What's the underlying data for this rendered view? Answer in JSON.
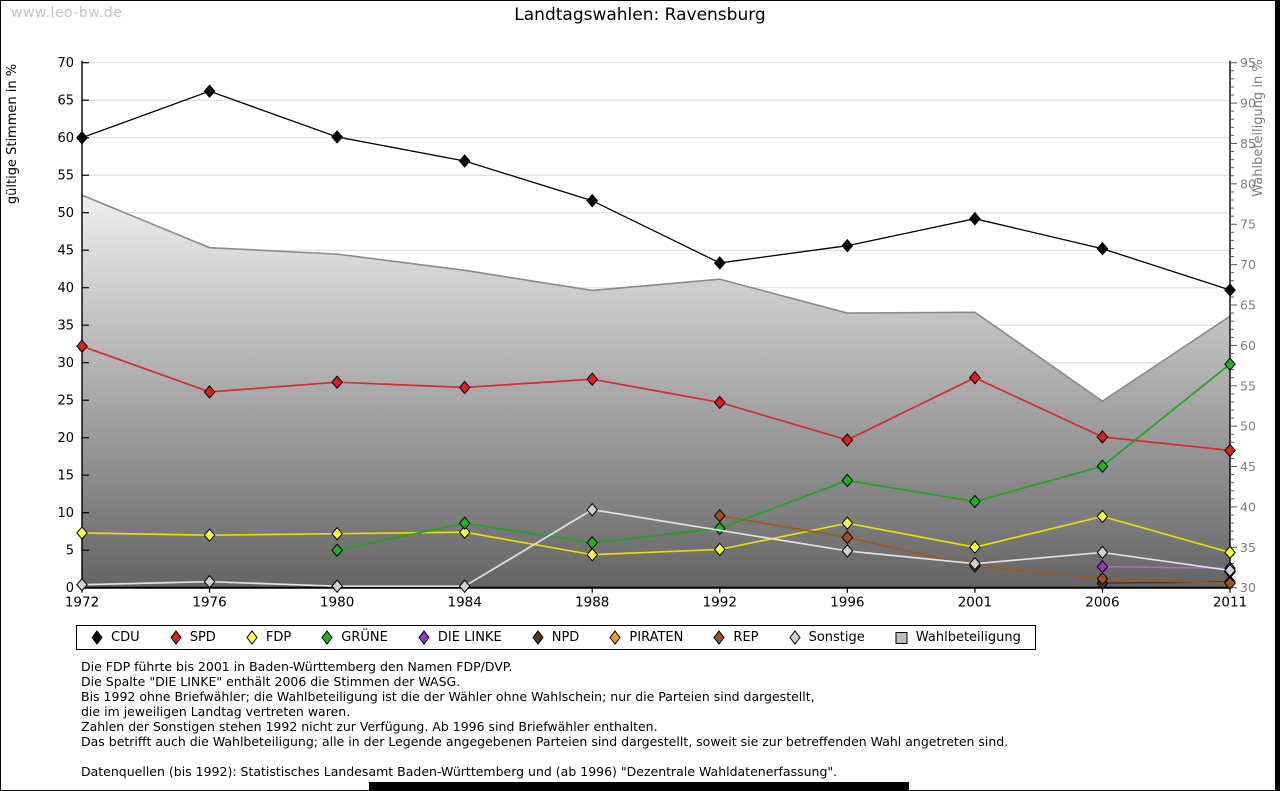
{
  "watermark": "www.leo-bw.de",
  "title": "Landtagswahlen: Ravensburg",
  "chart_data": {
    "type": "line",
    "title": "Landtagswahlen: Ravensburg",
    "x_categories": [
      "1972",
      "1976",
      "1980",
      "1984",
      "1988",
      "1992",
      "1996",
      "2001",
      "2006",
      "2011"
    ],
    "ylabel_left": "gültige Stimmen in %",
    "ylabel_right": "Wahlbeteiligung in %",
    "ylim_left": [
      0,
      70
    ],
    "ylim_right": [
      30,
      95
    ],
    "ytick_step_left": 5,
    "ytick_step_right": 5,
    "grid": true,
    "legend_position": "bottom",
    "series": [
      {
        "name": "Wahlbeteiligung",
        "type": "area",
        "axis": "right",
        "color": "#8a8a8a",
        "marker_color": "#bbbbbb",
        "values": [
          78.6,
          72.1,
          71.3,
          69.3,
          66.8,
          68.2,
          64.0,
          64.1,
          53.1,
          63.6
        ]
      },
      {
        "name": "CDU",
        "type": "line",
        "axis": "left",
        "color": "#000000",
        "marker_color": "#000000",
        "values": [
          60.0,
          66.2,
          60.1,
          56.9,
          51.6,
          43.3,
          45.6,
          49.2,
          45.2,
          39.7
        ]
      },
      {
        "name": "SPD",
        "type": "line",
        "axis": "left",
        "color": "#d42a2a",
        "marker_color": "#dd1f1f",
        "values": [
          32.2,
          26.1,
          27.4,
          26.7,
          27.8,
          24.7,
          19.7,
          28.0,
          20.1,
          18.3
        ]
      },
      {
        "name": "FDP",
        "type": "line",
        "axis": "left",
        "color": "#ecdc08",
        "marker_color": "#ffff38",
        "values": [
          7.3,
          7.0,
          7.2,
          7.4,
          4.4,
          5.1,
          8.6,
          5.4,
          9.5,
          4.7
        ]
      },
      {
        "name": "GRÜNE",
        "type": "line",
        "axis": "left",
        "color": "#1fa41f",
        "marker_color": "#1db31d",
        "values": [
          null,
          null,
          5.0,
          8.6,
          6.0,
          7.9,
          14.3,
          11.5,
          16.2,
          29.8
        ]
      },
      {
        "name": "DIE LINKE",
        "type": "line",
        "axis": "left",
        "color": "#b066cc",
        "marker_color": "#9933cc",
        "values": [
          null,
          null,
          null,
          null,
          null,
          null,
          null,
          null,
          2.8,
          2.6
        ]
      },
      {
        "name": "NPD",
        "type": "line",
        "axis": "left",
        "color": "#503a26",
        "marker_color": "#55381f",
        "values": [
          null,
          null,
          null,
          null,
          null,
          null,
          null,
          null,
          0.6,
          0.8
        ]
      },
      {
        "name": "PIRATEN",
        "type": "line",
        "axis": "left",
        "color": "#e8921e",
        "marker_color": "#ec9a20",
        "values": [
          null,
          null,
          null,
          null,
          null,
          null,
          null,
          null,
          null,
          2.1
        ]
      },
      {
        "name": "REP",
        "type": "line",
        "axis": "left",
        "color": "#9a5b22",
        "marker_color": "#a0521d",
        "values": [
          null,
          null,
          null,
          null,
          null,
          9.6,
          6.7,
          2.9,
          1.2,
          0.6
        ]
      },
      {
        "name": "Sonstige",
        "type": "line",
        "axis": "left",
        "color": "#e2e2e2",
        "marker_color": "#d0d0d0",
        "values": [
          0.4,
          0.8,
          0.2,
          0.2,
          10.4,
          null,
          4.9,
          3.2,
          4.7,
          2.3
        ]
      }
    ]
  },
  "legend_order": [
    "CDU",
    "SPD",
    "FDP",
    "GRÜNE",
    "DIE LINKE",
    "NPD",
    "PIRATEN",
    "REP",
    "Sonstige",
    "Wahlbeteiligung"
  ],
  "footnotes": [
    "Die FDP führte bis 2001 in Baden-Württemberg den Namen FDP/DVP.",
    "Die Spalte \"DIE LINKE\" enthält 2006 die Stimmen der WASG.",
    "Bis 1992 ohne Briefwähler; die Wahlbeteiligung ist die der Wähler ohne Wahlschein; nur die Parteien sind dargestellt,",
    "die im jeweiligen Landtag vertreten waren.",
    "Zahlen der Sonstigen stehen 1992 nicht zur Verfügung. Ab 1996 sind Briefwähler enthalten.",
    "Das betrifft auch die Wahlbeteiligung; alle in der Legende angegebenen Parteien sind dargestellt, soweit sie zur betreffenden Wahl angetreten sind.",
    "",
    "Datenquellen (bis 1992): Statistisches Landesamt Baden-Württemberg und (ab 1996) \"Dezentrale Wahldatenerfassung\"."
  ]
}
